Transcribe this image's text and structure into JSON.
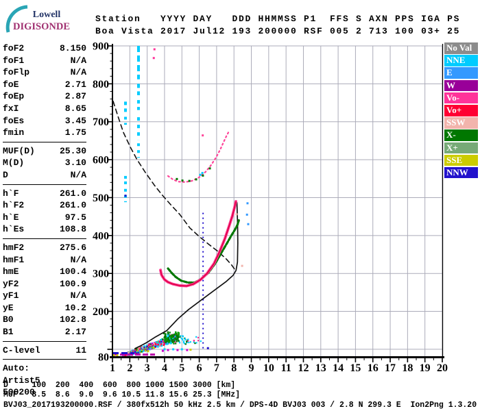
{
  "logo": {
    "line1": "Lowell",
    "line2": "DIGISONDE",
    "arc_color": "#2AA5B5",
    "line1_color": "#223366",
    "line2_color": "#A03070"
  },
  "header": {
    "line1": "Station   YYYY DAY   DDD HHMMSS P1  FFS S AXN PPS IGA PS",
    "line2": "Boa Vista 2017 Jul12 193 200000 RSF 005 2 713 100 03+ 25"
  },
  "params": {
    "groups": [
      [
        {
          "label": "foF2",
          "value": "8.150"
        },
        {
          "label": "foF1",
          "value": "N/A"
        },
        {
          "label": "foFlp",
          "value": "N/A"
        },
        {
          "label": "foE",
          "value": "2.71"
        },
        {
          "label": "foEp",
          "value": "2.87"
        },
        {
          "label": "fxI",
          "value": "8.65"
        },
        {
          "label": "foEs",
          "value": "3.45"
        },
        {
          "label": "fmin",
          "value": "1.75"
        }
      ],
      [
        {
          "label": "MUF(D)",
          "value": "25.30"
        },
        {
          "label": "M(D)",
          "value": "3.10"
        },
        {
          "label": "D",
          "value": "N/A"
        }
      ],
      [
        {
          "label": "h`F",
          "value": "261.0"
        },
        {
          "label": "h`F2",
          "value": "261.0"
        },
        {
          "label": "h`E",
          "value": "97.5"
        },
        {
          "label": "h`Es",
          "value": "108.8"
        }
      ],
      [
        {
          "label": "hmF2",
          "value": "275.6"
        },
        {
          "label": "hmF1",
          "value": "N/A"
        },
        {
          "label": "hmE",
          "value": "100.4"
        },
        {
          "label": "yF2",
          "value": "100.9"
        },
        {
          "label": "yF1",
          "value": "N/A"
        },
        {
          "label": "yE",
          "value": "10.2"
        },
        {
          "label": "B0",
          "value": "102.8"
        },
        {
          "label": "B1",
          "value": "2.17"
        }
      ],
      [
        {
          "label": "C-level",
          "value": "11"
        }
      ]
    ],
    "auto_lines": [
      "Auto:",
      "Artist5",
      "500200"
    ]
  },
  "legend": {
    "items": [
      {
        "label": "No Val",
        "color": "#8C8C8C"
      },
      {
        "label": "NNE",
        "color": "#00CCFF"
      },
      {
        "label": "E",
        "color": "#3399FF"
      },
      {
        "label": "W",
        "color": "#990099"
      },
      {
        "label": "Vo-",
        "color": "#FF3399"
      },
      {
        "label": "Vo+",
        "color": "#FF0033"
      },
      {
        "label": "SSW",
        "color": "#F2B4AC"
      },
      {
        "label": "X-",
        "color": "#007700"
      },
      {
        "label": "X+",
        "color": "#77AA77"
      },
      {
        "label": "SSE",
        "color": "#CCCC00"
      },
      {
        "label": "NNW",
        "color": "#2211CC"
      }
    ]
  },
  "chart_data": {
    "type": "scatter",
    "x_unit": "MHz",
    "y_unit": "km",
    "x_min": 1,
    "x_max": 20,
    "y_min": 80,
    "y_max": 900,
    "grid": true,
    "x_ticks": [
      1,
      2,
      3,
      4,
      5,
      6,
      7,
      8,
      9,
      10,
      11,
      12,
      13,
      14,
      15,
      16,
      17,
      18,
      19,
      20
    ],
    "y_tick_labels": [
      900,
      800,
      700,
      600,
      500,
      400,
      300,
      200,
      80
    ],
    "grid_color": "#ABABB9",
    "curves": [
      {
        "name": "transmission-curve-dashed",
        "color": "#111111",
        "width": 1.6,
        "dash": "7,5",
        "points": [
          [
            1.04,
            754
          ],
          [
            1.32,
            714
          ],
          [
            1.63,
            672
          ],
          [
            2.03,
            633
          ],
          [
            2.42,
            600
          ],
          [
            2.9,
            566
          ],
          [
            3.41,
            533
          ],
          [
            3.88,
            506
          ],
          [
            4.4,
            479
          ],
          [
            4.87,
            456
          ],
          [
            5.46,
            420
          ],
          [
            5.98,
            398
          ],
          [
            6.57,
            376
          ],
          [
            7.08,
            358
          ],
          [
            7.56,
            338
          ],
          [
            7.87,
            322
          ],
          [
            8.07,
            309
          ]
        ]
      },
      {
        "name": "true-height-profile",
        "color": "#111111",
        "width": 1.7,
        "dash": "",
        "points": [
          [
            2.3,
            102
          ],
          [
            2.62,
            109
          ],
          [
            2.98,
            118
          ],
          [
            3.42,
            131
          ],
          [
            4.12,
            149
          ],
          [
            4.79,
            181
          ],
          [
            5.39,
            205
          ],
          [
            6.18,
            232
          ],
          [
            6.97,
            259
          ],
          [
            7.56,
            279
          ],
          [
            7.95,
            295
          ],
          [
            8.12,
            308
          ],
          [
            8.2,
            330
          ],
          [
            8.22,
            380
          ],
          [
            8.21,
            430
          ],
          [
            8.17,
            487
          ]
        ]
      },
      {
        "name": "second-hop-f-trace",
        "color": "#FF4499",
        "width": 2.2,
        "dash": "2,4",
        "points": [
          [
            4.2,
            557
          ],
          [
            4.48,
            548
          ],
          [
            4.79,
            542
          ],
          [
            5.19,
            541
          ],
          [
            5.58,
            544
          ],
          [
            5.98,
            553
          ],
          [
            6.37,
            568
          ],
          [
            6.69,
            586
          ],
          [
            6.97,
            606
          ],
          [
            7.2,
            626
          ],
          [
            7.4,
            646
          ],
          [
            7.56,
            662
          ],
          [
            7.68,
            672
          ]
        ]
      },
      {
        "name": "f-trace-x-mode",
        "color": "#007700",
        "width": 3.2,
        "dash": "5,2.5",
        "points": [
          [
            4.2,
            313
          ],
          [
            4.4,
            302
          ],
          [
            4.64,
            291
          ],
          [
            4.95,
            281
          ],
          [
            5.35,
            276
          ],
          [
            5.74,
            276
          ],
          [
            6.14,
            286
          ],
          [
            6.53,
            302
          ],
          [
            6.93,
            327
          ],
          [
            7.28,
            355
          ],
          [
            7.6,
            380
          ],
          [
            7.85,
            400
          ],
          [
            8.05,
            415
          ],
          [
            8.2,
            428
          ],
          [
            8.28,
            440
          ]
        ]
      },
      {
        "name": "f-trace-o-mode",
        "color": "#FF3F95",
        "core_color": "#DD0044",
        "width": 4,
        "dash": "",
        "points": [
          [
            3.77,
            309
          ],
          [
            3.82,
            297
          ],
          [
            3.88,
            292
          ],
          [
            4.0,
            284
          ],
          [
            4.2,
            277
          ],
          [
            4.48,
            272
          ],
          [
            4.87,
            268
          ],
          [
            5.27,
            267
          ],
          [
            5.66,
            272
          ],
          [
            6.06,
            283
          ],
          [
            6.45,
            300
          ],
          [
            6.85,
            326
          ],
          [
            7.16,
            356
          ],
          [
            7.48,
            392
          ],
          [
            7.72,
            425
          ],
          [
            7.91,
            452
          ],
          [
            8.03,
            474
          ],
          [
            8.11,
            490
          ]
        ]
      }
    ],
    "vertical_segments": [
      {
        "f": 2.5,
        "alt1": 900,
        "alt2": 812,
        "color": "#00CCFF",
        "width": 4,
        "dash": "9,5"
      },
      {
        "f": 2.5,
        "alt1": 800,
        "alt2": 770,
        "color": "#00CCFF",
        "width": 4,
        "dash": "6,5"
      },
      {
        "f": 2.5,
        "alt1": 757,
        "alt2": 731,
        "color": "#00CCFF",
        "width": 4,
        "dash": "5,5"
      },
      {
        "f": 2.5,
        "alt1": 712,
        "alt2": 652,
        "color": "#00CCFF",
        "width": 4,
        "dash": "5,6"
      },
      {
        "f": 2.5,
        "alt1": 643,
        "alt2": 605,
        "color": "#00CCFF",
        "width": 4,
        "dash": "4,6"
      },
      {
        "f": 1.75,
        "alt1": 753,
        "alt2": 722,
        "color": "#00CCFF",
        "width": 4,
        "dash": "5,5"
      },
      {
        "f": 1.75,
        "alt1": 713,
        "alt2": 692,
        "color": "#00CCFF",
        "width": 4,
        "dash": "4,5"
      },
      {
        "f": 1.75,
        "alt1": 557,
        "alt2": 530,
        "color": "#00CCFF",
        "width": 4,
        "dash": "4,4"
      },
      {
        "f": 1.75,
        "alt1": 523,
        "alt2": 488,
        "color": "#00CCFF",
        "width": 4,
        "dash": "4,5"
      },
      {
        "f": 6.22,
        "alt1": 460,
        "alt2": 100,
        "color": "#2211CC",
        "width": 2,
        "dash": "2,5"
      }
    ],
    "baselines": [
      {
        "f1": 1.0,
        "f2": 3.45,
        "alt": 86,
        "color": "#BB00AA",
        "width": 3,
        "dash": "8,3"
      },
      {
        "f1": 1.0,
        "f2": 2.25,
        "alt": 90,
        "color": "#2211CC",
        "width": 3,
        "dash": "9,4"
      },
      {
        "f1": 1.02,
        "f2": 1.35,
        "alt": 84,
        "color": "#CCCC00",
        "width": 3,
        "dash": "3,2"
      }
    ],
    "es_cloud": {
      "main": {
        "count": 480,
        "f_min": 1.55,
        "f_max": 4.75,
        "alt_base": 84,
        "alt_slope": 16,
        "spread_base": 5,
        "spread_slope": 2.0,
        "palette": [
          "#00CCFF",
          "#00CCFF",
          "#FF0033",
          "#FF3399",
          "#CC00CC",
          "#007700",
          "#66AA66",
          "#CCCC00",
          "#2211CC",
          "#F2B4AC",
          "#FF0033",
          "#00CCFF"
        ]
      },
      "tail": {
        "count": 110,
        "f_min": 4.1,
        "f_max": 6.6,
        "alt_min": 115,
        "alt_max": 142,
        "palette": [
          "#00CCFF",
          "#00CCFF",
          "#00CCFF",
          "#00CCFF",
          "#007700",
          "#FF3399"
        ]
      },
      "green_cluster": {
        "count": 70,
        "f_min": 3.9,
        "f_max": 4.8,
        "alt_min": 120,
        "alt_max": 148,
        "palette": [
          "#007700",
          "#007700",
          "#009900"
        ]
      }
    },
    "markers": [
      [
        3.42,
        891,
        "#FF3399"
      ],
      [
        3.38,
        868,
        "#FF3399"
      ],
      [
        1.75,
        505,
        "#2211CC"
      ],
      [
        6.2,
        664,
        "#FF4499"
      ],
      [
        6.06,
        560,
        "#00CCFF"
      ],
      [
        6.18,
        565,
        "#00CCFF"
      ],
      [
        4.71,
        549,
        "#007700"
      ],
      [
        5.03,
        545,
        "#007700"
      ],
      [
        5.43,
        544,
        "#007700"
      ],
      [
        5.82,
        548,
        "#007700"
      ],
      [
        6.21,
        558,
        "#007700"
      ],
      [
        6.61,
        577,
        "#007700"
      ],
      [
        8.15,
        456,
        "#F2B4AC"
      ],
      [
        8.47,
        320,
        "#F2B4AC"
      ],
      [
        8.78,
        485,
        "#3399FF"
      ],
      [
        8.75,
        455,
        "#3399FF"
      ],
      [
        8.82,
        430,
        "#3399FF"
      ],
      [
        6.5,
        103,
        "#2211CC"
      ],
      [
        4.0,
        100,
        "#00CCFF"
      ],
      [
        4.2,
        98,
        "#CC00CC"
      ],
      [
        4.5,
        100,
        "#00CCFF"
      ],
      [
        4.75,
        98,
        "#CC00CC"
      ],
      [
        5.0,
        100,
        "#00CCFF"
      ],
      [
        5.3,
        98,
        "#CC00CC"
      ],
      [
        5.5,
        99,
        "#CCCC00"
      ],
      [
        3.9,
        96,
        "#CC00CC"
      ],
      [
        3.05,
        95,
        "#CCCC00"
      ]
    ]
  },
  "bottom": {
    "d_row": "D     100  200  400  600  800 1000 1500 3000 [km]",
    "muf_row": "MUF   8.5  8.6  9.0  9.6 10.5 11.8 15.6 25.3 [MHz]",
    "footer": "BVJ03_2017193200000.RSF / 380fx512h 50 kHz 2.5 km / DPS-4D BVJ03 003 / 2.8 N 299.3 E  Ion2Png 1.3.20"
  }
}
